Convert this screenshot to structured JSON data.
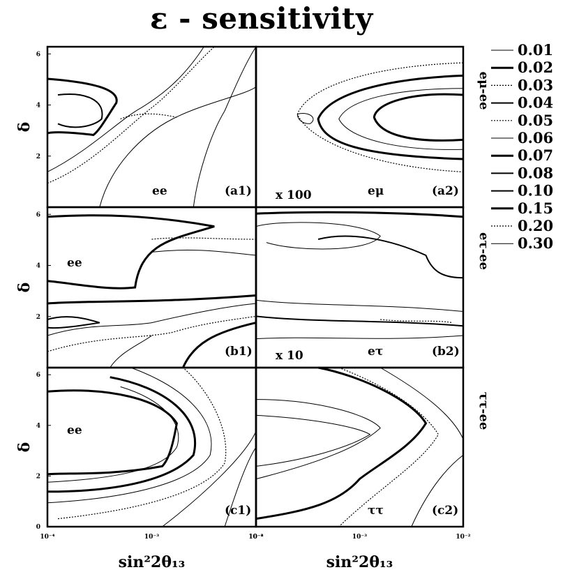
{
  "title": "ε - sensitivity",
  "chart_data": {
    "type": "contour",
    "x_scale": "log",
    "x_range": [
      0.0001,
      0.01
    ],
    "y_range": [
      0,
      6.28
    ],
    "xlabel": "sin²2θ₁₃",
    "ylabel": "δ",
    "x_ticks_left": [
      "10⁻⁴",
      "10⁻³",
      "10⁻²"
    ],
    "x_ticks_right": [
      "10⁻⁴",
      "10⁻³",
      "10⁻²"
    ],
    "y_ticks": [
      "0",
      "2",
      "4",
      "6"
    ],
    "legend": {
      "position": "right",
      "levels": [
        "0.01",
        "0.02",
        "0.03",
        "0.04",
        "0.05",
        "0.06",
        "0.07",
        "0.08",
        "0.10",
        "0.15",
        "0.20",
        "0.30"
      ]
    },
    "row_labels": [
      "eμ-ee",
      "eτ-ee",
      "ττ-ee"
    ],
    "panels": [
      {
        "id": "(a1)",
        "channel": "ee",
        "scale": ""
      },
      {
        "id": "(a2)",
        "channel": "eμ",
        "scale": "x 100"
      },
      {
        "id": "(b1)",
        "channel": "ee",
        "scale": ""
      },
      {
        "id": "(b2)",
        "channel": "eτ",
        "scale": "x 10"
      },
      {
        "id": "(c1)",
        "channel": "ee",
        "scale": ""
      },
      {
        "id": "(c2)",
        "channel": "ττ",
        "scale": ""
      }
    ]
  }
}
